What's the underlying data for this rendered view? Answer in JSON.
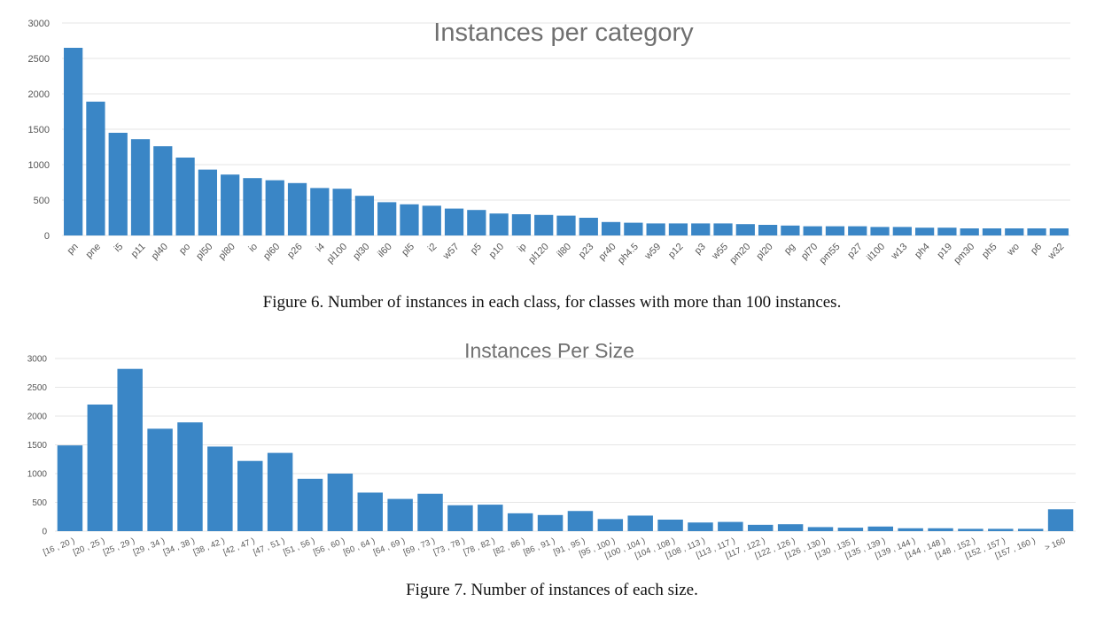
{
  "chart_data": [
    {
      "type": "bar",
      "title": "Instances per category",
      "xlabel": "",
      "ylabel": "",
      "ylim": [
        0,
        3000
      ],
      "yticks": [
        0,
        500,
        1000,
        1500,
        2000,
        2500,
        3000
      ],
      "grid": true,
      "legend": "none",
      "bar_color": "#3a86c6",
      "categories": [
        "pn",
        "pne",
        "i5",
        "p11",
        "pl40",
        "po",
        "pl50",
        "pl80",
        "io",
        "pl60",
        "p26",
        "i4",
        "pl100",
        "pl30",
        "il60",
        "pl5",
        "i2",
        "w57",
        "p5",
        "p10",
        "ip",
        "pl120",
        "il80",
        "p23",
        "pr40",
        "ph4.5",
        "w59",
        "p12",
        "p3",
        "w55",
        "pm20",
        "pl20",
        "pg",
        "pl70",
        "pm55",
        "p27",
        "il100",
        "w13",
        "ph4",
        "p19",
        "pm30",
        "ph5",
        "wo",
        "p6",
        "w32"
      ],
      "values": [
        2650,
        1890,
        1450,
        1360,
        1260,
        1100,
        930,
        860,
        810,
        780,
        740,
        670,
        660,
        560,
        470,
        440,
        420,
        380,
        360,
        310,
        300,
        290,
        280,
        250,
        190,
        180,
        170,
        170,
        170,
        170,
        160,
        150,
        140,
        130,
        130,
        130,
        120,
        120,
        110,
        110,
        100,
        100,
        100,
        100,
        100
      ]
    },
    {
      "type": "bar",
      "title": "Instances Per Size",
      "xlabel": "",
      "ylabel": "",
      "ylim": [
        0,
        3000
      ],
      "yticks": [
        0,
        500,
        1000,
        1500,
        2000,
        2500,
        3000
      ],
      "grid": true,
      "legend": "none",
      "bar_color": "#3a86c6",
      "categories": [
        "[16 , 20 )",
        "[20 , 25 )",
        "[25 , 29 )",
        "[29 , 34 )",
        "[34 , 38 )",
        "[38 , 42 )",
        "[42 , 47 )",
        "[47 , 51 )",
        "[51 , 56 )",
        "[56 , 60 )",
        "[60 , 64 )",
        "[64 , 69 )",
        "[69 , 73 )",
        "[73 , 78 )",
        "[78 , 82 )",
        "[82 , 86 )",
        "[86 , 91 )",
        "[91 , 95 )",
        "[95 , 100 )",
        "[100 , 104 )",
        "[104 , 108 )",
        "[108 , 113 )",
        "[113 , 117 )",
        "[117 , 122 )",
        "[122 , 126 )",
        "[126 , 130 )",
        "[130 , 135 )",
        "[135 , 139 )",
        "[139 , 144 )",
        "[144 , 148 )",
        "[148 , 152 )",
        "[152 , 157 )",
        "[157 , 160 )",
        "> 160"
      ],
      "values": [
        1490,
        2200,
        2820,
        1780,
        1890,
        1470,
        1220,
        1360,
        910,
        1000,
        670,
        560,
        650,
        450,
        460,
        310,
        280,
        350,
        210,
        270,
        200,
        150,
        160,
        110,
        120,
        70,
        60,
        80,
        50,
        50,
        40,
        40,
        40,
        380
      ]
    }
  ],
  "captions": {
    "figure6": "Figure 6. Number of instances in each class, for classes with more than 100 instances.",
    "figure7": "Figure 7. Number of instances of each size."
  }
}
